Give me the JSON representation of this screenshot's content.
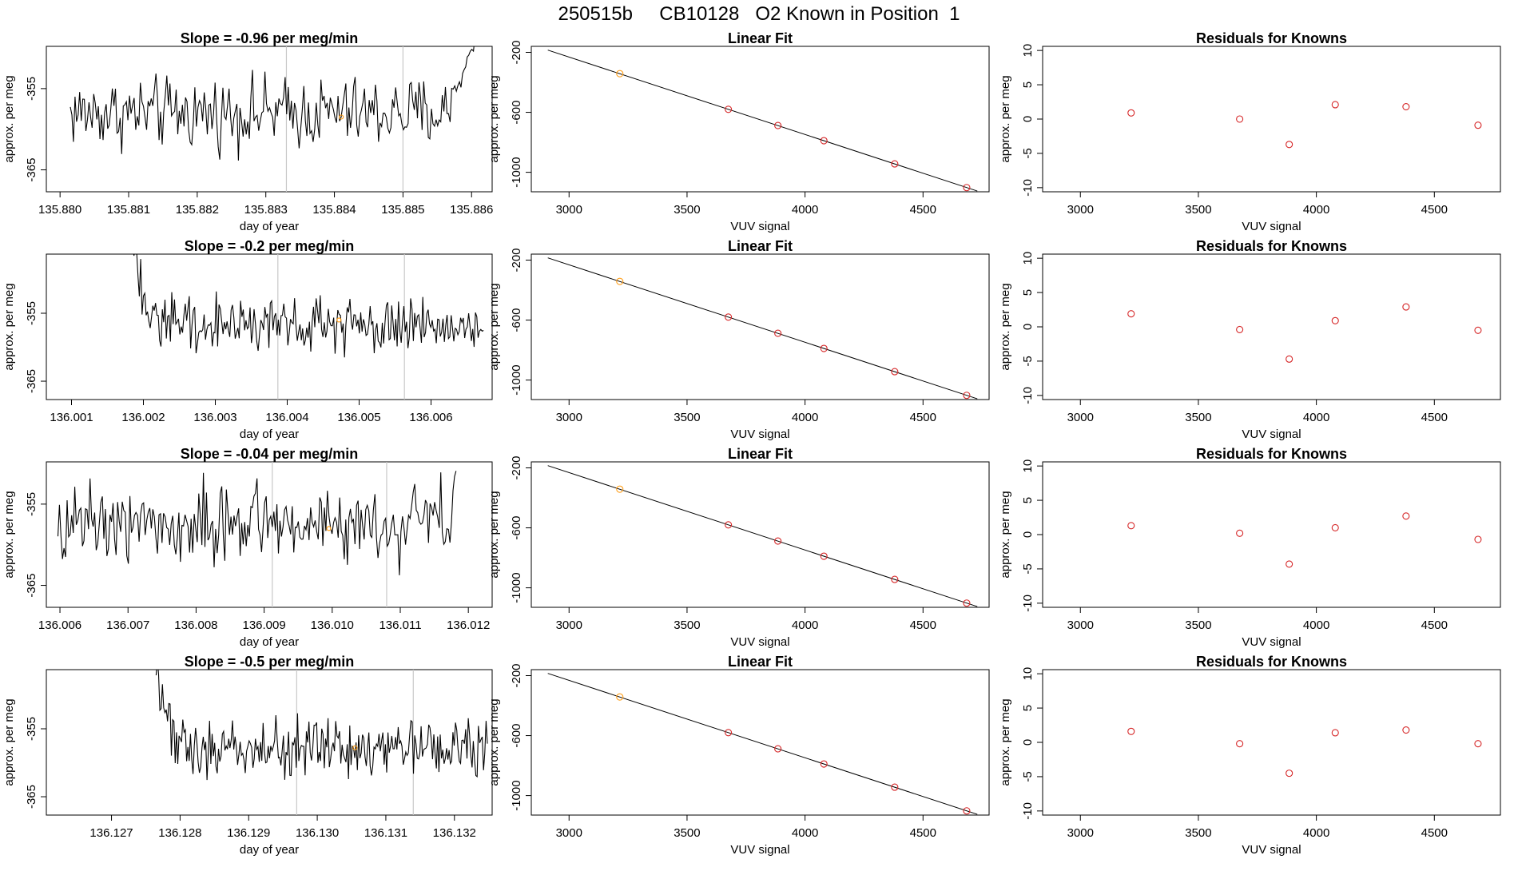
{
  "page": {
    "title": "250515b     CB10128   O2 Known in Position  1"
  },
  "styles": {
    "trace_color": "#000000",
    "known_color": "#d62728",
    "highlight_color": "#ff9f1a",
    "vline_color": "#c8c8c8"
  },
  "chart_data": [
    {
      "type": "line",
      "title": "Slope =  -0.96  per meg/min",
      "xlabel": "day of year",
      "ylabel": "approx. per meg",
      "xlim": [
        135.8798,
        135.8863
      ],
      "ylim": [
        -367.7,
        -349.8
      ],
      "xticks": [
        "135.880",
        "135.881",
        "135.882",
        "135.883",
        "135.884",
        "135.885",
        "135.886"
      ],
      "yticks": [
        "-365",
        "-355"
      ],
      "x_start": 135.88015,
      "x_end": 135.88605,
      "baseline": -358.0,
      "noise": 2.7,
      "vlines": [
        135.8833,
        135.885
      ],
      "highlight": {
        "x": 135.8841,
        "y": -358.5
      },
      "trend": [
        {
          "x": 135.8857,
          "y": -356.5
        },
        {
          "x": 135.88605,
          "y": -349.8
        }
      ],
      "start_spike": null
    },
    {
      "type": "scatter",
      "title": "Linear Fit",
      "xlabel": "VUV signal",
      "ylabel": "approx. per meg",
      "xlim": [
        2840,
        4780
      ],
      "ylim": [
        -1130,
        -160
      ],
      "xticks": [
        "3000",
        "3500",
        "4000",
        "4500"
      ],
      "yticks": [
        "-200",
        "-600",
        "-1000"
      ],
      "line": {
        "x": [
          2910,
          4730
        ],
        "y": [
          -185,
          -1125
        ]
      },
      "points": [
        {
          "x": 3215,
          "y": -342
        },
        {
          "x": 3675,
          "y": -580
        },
        {
          "x": 3885,
          "y": -688
        },
        {
          "x": 4080,
          "y": -789
        },
        {
          "x": 4380,
          "y": -944
        },
        {
          "x": 4685,
          "y": -1102
        }
      ]
    },
    {
      "type": "scatter",
      "title": "Residuals for Knowns",
      "xlabel": "VUV signal",
      "ylabel": "approx. per meg",
      "xlim": [
        2840,
        4780
      ],
      "ylim": [
        -10.6,
        10.6
      ],
      "xticks": [
        "3000",
        "3500",
        "4000",
        "4500"
      ],
      "yticks": [
        "-10",
        "-5",
        "0",
        "5",
        "10"
      ],
      "points": [
        {
          "x": 3215,
          "y": 0.9
        },
        {
          "x": 3675,
          "y": 0.0
        },
        {
          "x": 3885,
          "y": -3.7
        },
        {
          "x": 4080,
          "y": 2.1
        },
        {
          "x": 4380,
          "y": 1.8
        },
        {
          "x": 4685,
          "y": -0.9
        }
      ]
    },
    {
      "type": "line",
      "title": "Slope =  -0.2  per meg/min",
      "xlabel": "day of year",
      "ylabel": "approx. per meg",
      "xlim": [
        136.00065,
        136.00685
      ],
      "ylim": [
        -367.7,
        -346.3
      ],
      "xticks": [
        "136.001",
        "136.002",
        "136.003",
        "136.004",
        "136.005",
        "136.006"
      ],
      "yticks": [
        "-365",
        "-355"
      ],
      "x_start": 136.00185,
      "x_end": 136.00673,
      "baseline": -356.5,
      "noise": 2.5,
      "vlines": [
        136.00387,
        136.00563
      ],
      "highlight": {
        "x": 136.00472,
        "y": -356.0
      },
      "trend": null,
      "start_spike": {
        "y": -346.3,
        "len": 0.0004
      }
    },
    {
      "type": "scatter",
      "title": "Linear Fit",
      "xlabel": "VUV signal",
      "ylabel": "approx. per meg",
      "xlim": [
        2840,
        4780
      ],
      "ylim": [
        -1130,
        -160
      ],
      "xticks": [
        "3000",
        "3500",
        "4000",
        "4500"
      ],
      "yticks": [
        "-200",
        "-600",
        "-1000"
      ],
      "line": {
        "x": [
          2910,
          4730
        ],
        "y": [
          -185,
          -1125
        ]
      },
      "points": [
        {
          "x": 3215,
          "y": -342
        },
        {
          "x": 3675,
          "y": -580
        },
        {
          "x": 3885,
          "y": -688
        },
        {
          "x": 4080,
          "y": -789
        },
        {
          "x": 4380,
          "y": -944
        },
        {
          "x": 4685,
          "y": -1102
        }
      ]
    },
    {
      "type": "scatter",
      "title": "Residuals for Knowns",
      "xlabel": "VUV signal",
      "ylabel": "approx. per meg",
      "xlim": [
        2840,
        4780
      ],
      "ylim": [
        -10.6,
        10.6
      ],
      "xticks": [
        "3000",
        "3500",
        "4000",
        "4500"
      ],
      "yticks": [
        "-10",
        "-5",
        "0",
        "5",
        "10"
      ],
      "points": [
        {
          "x": 3215,
          "y": 1.9
        },
        {
          "x": 3675,
          "y": -0.4
        },
        {
          "x": 3885,
          "y": -4.7
        },
        {
          "x": 4080,
          "y": 0.9
        },
        {
          "x": 4380,
          "y": 2.9
        },
        {
          "x": 4685,
          "y": -0.5
        }
      ]
    },
    {
      "type": "line",
      "title": "Slope =  -0.04  per meg/min",
      "xlabel": "day of year",
      "ylabel": "approx. per meg",
      "xlim": [
        136.0058,
        136.01235
      ],
      "ylim": [
        -367.7,
        -349.8
      ],
      "xticks": [
        "136.006",
        "136.007",
        "136.008",
        "136.009",
        "136.010",
        "136.011",
        "136.012"
      ],
      "yticks": [
        "-365",
        "-355"
      ],
      "x_start": 136.00597,
      "x_end": 136.01182,
      "baseline": -357.0,
      "noise": 3.0,
      "vlines": [
        136.00912,
        136.0108
      ],
      "highlight": {
        "x": 136.00995,
        "y": -358.0
      },
      "trend": [
        {
          "x": 136.01176,
          "y": -356.0
        },
        {
          "x": 136.01182,
          "y": -349.8
        }
      ],
      "start_spike": null
    },
    {
      "type": "scatter",
      "title": "Linear Fit",
      "xlabel": "VUV signal",
      "ylabel": "approx. per meg",
      "xlim": [
        2840,
        4780
      ],
      "ylim": [
        -1130,
        -160
      ],
      "xticks": [
        "3000",
        "3500",
        "4000",
        "4500"
      ],
      "yticks": [
        "-200",
        "-600",
        "-1000"
      ],
      "line": {
        "x": [
          2910,
          4730
        ],
        "y": [
          -185,
          -1125
        ]
      },
      "points": [
        {
          "x": 3215,
          "y": -342
        },
        {
          "x": 3675,
          "y": -580
        },
        {
          "x": 3885,
          "y": -688
        },
        {
          "x": 4080,
          "y": -789
        },
        {
          "x": 4380,
          "y": -944
        },
        {
          "x": 4685,
          "y": -1102
        }
      ]
    },
    {
      "type": "scatter",
      "title": "Residuals for Knowns",
      "xlabel": "VUV signal",
      "ylabel": "approx. per meg",
      "xlim": [
        2840,
        4780
      ],
      "ylim": [
        -10.6,
        10.6
      ],
      "xticks": [
        "3000",
        "3500",
        "4000",
        "4500"
      ],
      "yticks": [
        "-10",
        "-5",
        "0",
        "5",
        "10"
      ],
      "points": [
        {
          "x": 3215,
          "y": 1.3
        },
        {
          "x": 3675,
          "y": 0.2
        },
        {
          "x": 3885,
          "y": -4.3
        },
        {
          "x": 4080,
          "y": 1.0
        },
        {
          "x": 4380,
          "y": 2.7
        },
        {
          "x": 4685,
          "y": -0.7
        }
      ]
    },
    {
      "type": "line",
      "title": "Slope =  -0.5  per meg/min",
      "xlabel": "day of year",
      "ylabel": "approx. per meg",
      "xlim": [
        136.12605,
        136.13255
      ],
      "ylim": [
        -367.7,
        -346.3
      ],
      "xticks": [
        "136.127",
        "136.128",
        "136.129",
        "136.130",
        "136.131",
        "136.132"
      ],
      "yticks": [
        "-365",
        "-355"
      ],
      "x_start": 136.12765,
      "x_end": 136.13248,
      "baseline": -357.8,
      "noise": 2.6,
      "vlines": [
        136.1297,
        136.1314
      ],
      "highlight": {
        "x": 136.13055,
        "y": -357.8
      },
      "trend": null,
      "start_spike": {
        "y": -346.3,
        "len": 0.0004
      }
    },
    {
      "type": "scatter",
      "title": "Linear Fit",
      "xlabel": "VUV signal",
      "ylabel": "approx. per meg",
      "xlim": [
        2840,
        4780
      ],
      "ylim": [
        -1130,
        -160
      ],
      "xticks": [
        "3000",
        "3500",
        "4000",
        "4500"
      ],
      "yticks": [
        "-200",
        "-600",
        "-1000"
      ],
      "line": {
        "x": [
          2910,
          4730
        ],
        "y": [
          -185,
          -1125
        ]
      },
      "points": [
        {
          "x": 3215,
          "y": -342
        },
        {
          "x": 3675,
          "y": -580
        },
        {
          "x": 3885,
          "y": -688
        },
        {
          "x": 4080,
          "y": -789
        },
        {
          "x": 4380,
          "y": -944
        },
        {
          "x": 4685,
          "y": -1102
        }
      ]
    },
    {
      "type": "scatter",
      "title": "Residuals for Knowns",
      "xlabel": "VUV signal",
      "ylabel": "approx. per meg",
      "xlim": [
        2840,
        4780
      ],
      "ylim": [
        -10.6,
        10.6
      ],
      "xticks": [
        "3000",
        "3500",
        "4000",
        "4500"
      ],
      "yticks": [
        "-10",
        "-5",
        "0",
        "5",
        "10"
      ],
      "points": [
        {
          "x": 3215,
          "y": 1.6
        },
        {
          "x": 3675,
          "y": -0.2
        },
        {
          "x": 3885,
          "y": -4.5
        },
        {
          "x": 4080,
          "y": 1.4
        },
        {
          "x": 4380,
          "y": 1.8
        },
        {
          "x": 4685,
          "y": -0.2
        }
      ]
    }
  ]
}
